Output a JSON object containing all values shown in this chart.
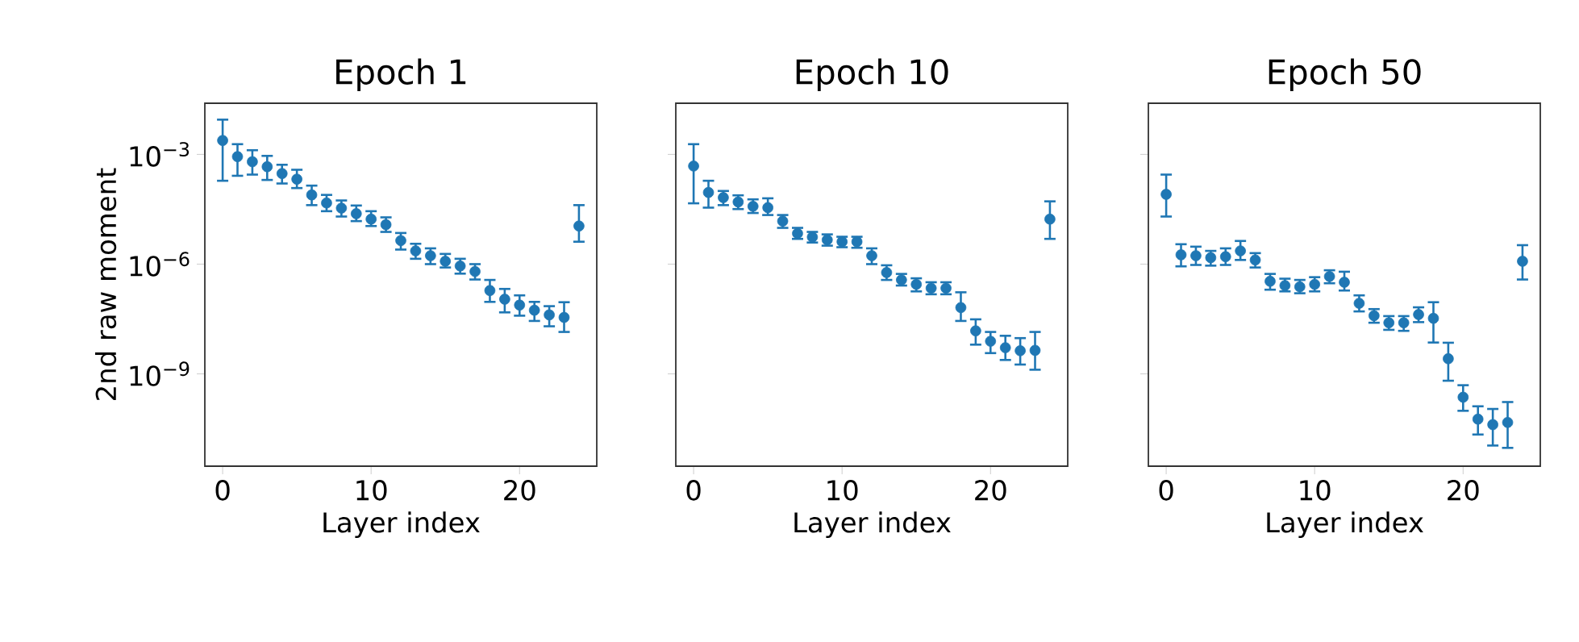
{
  "chart_data": [
    {
      "type": "scatter",
      "title": "Epoch 1",
      "xlabel": "Layer index",
      "ylabel": "2nd raw moment",
      "log": "y",
      "marker": "circle",
      "x": [
        0,
        1,
        2,
        3,
        4,
        5,
        6,
        7,
        8,
        9,
        10,
        11,
        12,
        13,
        14,
        15,
        16,
        17,
        18,
        19,
        20,
        21,
        22,
        23,
        24
      ],
      "xlim": [
        -1.2,
        25.2
      ],
      "xticks": [
        0,
        10,
        20
      ],
      "ylim": [
        3e-12,
        0.025
      ],
      "yticks": [
        {
          "value": 0.001,
          "label": "10$^{−3}$"
        },
        {
          "value": 1e-06,
          "label": "10$^{−6}$"
        },
        {
          "value": 1e-09,
          "label": "10$^{−9}$"
        }
      ],
      "series": [
        {
          "color": "#1f77b4",
          "values": [
            0.0024,
            0.00087,
            0.00063,
            0.00046,
            0.0003,
            0.00021,
            7.8e-05,
            4.7e-05,
            3.4e-05,
            2.4e-05,
            1.7e-05,
            1.2e-05,
            4.4e-06,
            2.3e-06,
            1.7e-06,
            1.2e-06,
            8.9e-07,
            6.3e-07,
            1.9e-07,
            1.1e-07,
            7.6e-08,
            5.5e-08,
            4.1e-08,
            3.5e-08,
            1.1e-05
          ],
          "errors": [
            [
              0.00019,
              0.0089
            ],
            [
              0.00026,
              0.0019
            ],
            [
              0.00028,
              0.0013
            ],
            [
              0.0002,
              0.00091
            ],
            [
              0.00016,
              0.00052
            ],
            [
              0.00012,
              0.00038
            ],
            [
              4.1e-05,
              0.00014
            ],
            [
              2.8e-05,
              7.8e-05
            ],
            [
              2e-05,
              5.5e-05
            ],
            [
              1.5e-05,
              4e-05
            ],
            [
              1.1e-05,
              2.8e-05
            ],
            [
              7.6e-06,
              1.9e-05
            ],
            [
              2.5e-06,
              7.1e-06
            ],
            [
              1.4e-06,
              3.6e-06
            ],
            [
              1e-06,
              2.7e-06
            ],
            [
              8.1e-07,
              1.9e-06
            ],
            [
              5.5e-07,
              1.4e-06
            ],
            [
              3.8e-07,
              1e-06
            ],
            [
              9.3e-08,
              3.7e-07
            ],
            [
              4.8e-08,
              2.1e-07
            ],
            [
              3.9e-08,
              1.4e-07
            ],
            [
              2.8e-08,
              9.3e-08
            ],
            [
              2e-08,
              7.1e-08
            ],
            [
              1.4e-08,
              9.1e-08
            ],
            [
              4.1e-06,
              4.1e-05
            ]
          ]
        }
      ]
    },
    {
      "type": "scatter",
      "title": "Epoch 10",
      "xlabel": "Layer index",
      "log": "y",
      "marker": "circle",
      "tick_labels": "x",
      "x": [
        0,
        1,
        2,
        3,
        4,
        5,
        6,
        7,
        8,
        9,
        10,
        11,
        12,
        13,
        14,
        15,
        16,
        17,
        18,
        19,
        20,
        21,
        22,
        23,
        24
      ],
      "xlim": [
        -1.2,
        25.2
      ],
      "xticks": [
        0,
        10,
        20
      ],
      "ylim": [
        3e-12,
        0.025
      ],
      "yticks": [
        {
          "value": 0.001,
          "label": null
        },
        {
          "value": 1e-06,
          "label": null
        },
        {
          "value": 1e-09,
          "label": null
        }
      ],
      "series": [
        {
          "color": "#1f77b4",
          "values": [
            0.00048,
            9.1e-05,
            6.6e-05,
            5e-05,
            3.8e-05,
            3.5e-05,
            1.5e-05,
            6.9e-06,
            5.5e-06,
            4.6e-06,
            4.1e-06,
            4.1e-06,
            1.7e-06,
            5.9e-07,
            3.7e-07,
            2.8e-07,
            2.2e-07,
            2.2e-07,
            6.5e-08,
            1.5e-08,
            7.8e-09,
            5.2e-09,
            4.3e-09,
            4.4e-09,
            1.7e-05
          ],
          "errors": [
            [
              4.6e-05,
              0.0019
            ],
            [
              3.5e-05,
              0.00019
            ],
            [
              4.1e-05,
              0.0001
            ],
            [
              3.2e-05,
              7.6e-05
            ],
            [
              2.5e-05,
              5.9e-05
            ],
            [
              2.2e-05,
              6.3e-05
            ],
            [
              9.8e-06,
              2.2e-05
            ],
            [
              4.9e-06,
              9.8e-06
            ],
            [
              3.9e-06,
              7.6e-06
            ],
            [
              3.2e-06,
              6.5e-06
            ],
            [
              2.9e-06,
              5.6e-06
            ],
            [
              2.8e-06,
              5.6e-06
            ],
            [
              1e-06,
              2.7e-06
            ],
            [
              3.7e-07,
              9.3e-07
            ],
            [
              2.6e-07,
              5.4e-07
            ],
            [
              1.8e-07,
              4.1e-07
            ],
            [
              1.5e-07,
              3.2e-07
            ],
            [
              1.5e-07,
              3.2e-07
            ],
            [
              2.8e-08,
              1.7e-07
            ],
            [
              6.3e-09,
              3.1e-08
            ],
            [
              3.7e-09,
              1.4e-08
            ],
            [
              2.4e-09,
              1.1e-08
            ],
            [
              1.8e-09,
              9.5e-09
            ],
            [
              1.3e-09,
              1.4e-08
            ],
            [
              4.9e-06,
              5.2e-05
            ]
          ]
        }
      ]
    },
    {
      "type": "scatter",
      "title": "Epoch 50",
      "xlabel": "Layer index",
      "log": "y",
      "marker": "circle",
      "tick_labels": "x",
      "x": [
        0,
        1,
        2,
        3,
        4,
        5,
        6,
        7,
        8,
        9,
        10,
        11,
        12,
        13,
        14,
        15,
        16,
        17,
        18,
        19,
        20,
        21,
        22,
        23,
        24
      ],
      "xlim": [
        -1.2,
        25.2
      ],
      "xticks": [
        0,
        10,
        20
      ],
      "ylim": [
        3e-12,
        0.025
      ],
      "yticks": [
        {
          "value": 0.001,
          "label": null
        },
        {
          "value": 1e-06,
          "label": null
        },
        {
          "value": 1e-09,
          "label": null
        }
      ],
      "series": [
        {
          "color": "#1f77b4",
          "values": [
            8.1e-05,
            1.8e-06,
            1.7e-06,
            1.5e-06,
            1.6e-06,
            2.3e-06,
            1.3e-06,
            3.4e-07,
            2.6e-07,
            2.4e-07,
            2.8e-07,
            4.6e-07,
            3.2e-07,
            8.5e-08,
            3.9e-08,
            2.5e-08,
            2.5e-08,
            4.2e-08,
            3.3e-08,
            2.6e-09,
            2.3e-10,
            5.8e-11,
            4.1e-11,
            4.7e-11,
            1.2e-06
          ],
          "errors": [
            [
              2e-05,
              0.00028
            ],
            [
              8.7e-07,
              3.5e-06
            ],
            [
              9.5e-07,
              3e-06
            ],
            [
              9.1e-07,
              2.3e-06
            ],
            [
              9.5e-07,
              2.7e-06
            ],
            [
              1.3e-06,
              4.3e-06
            ],
            [
              8.1e-07,
              2e-06
            ],
            [
              2e-07,
              5.4e-07
            ],
            [
              1.8e-07,
              4e-07
            ],
            [
              1.6e-07,
              3.7e-07
            ],
            [
              1.8e-07,
              4.4e-07
            ],
            [
              3e-07,
              6.8e-07
            ],
            [
              1.9e-07,
              6.2e-07
            ],
            [
              5.1e-08,
              1.4e-07
            ],
            [
              2.5e-08,
              5.9e-08
            ],
            [
              1.6e-08,
              3.8e-08
            ],
            [
              1.5e-08,
              3.8e-08
            ],
            [
              2.6e-08,
              6.6e-08
            ],
            [
              7.2e-09,
              9.1e-08
            ],
            [
              6.5e-10,
              7.1e-09
            ],
            [
              9.8e-11,
              4.9e-10
            ],
            [
              2.2e-11,
              1.3e-10
            ],
            [
              1.1e-11,
              1.1e-10
            ],
            [
              9.5e-12,
              1.7e-10
            ],
            [
              3.8e-07,
              3.3e-06
            ]
          ]
        }
      ]
    }
  ]
}
